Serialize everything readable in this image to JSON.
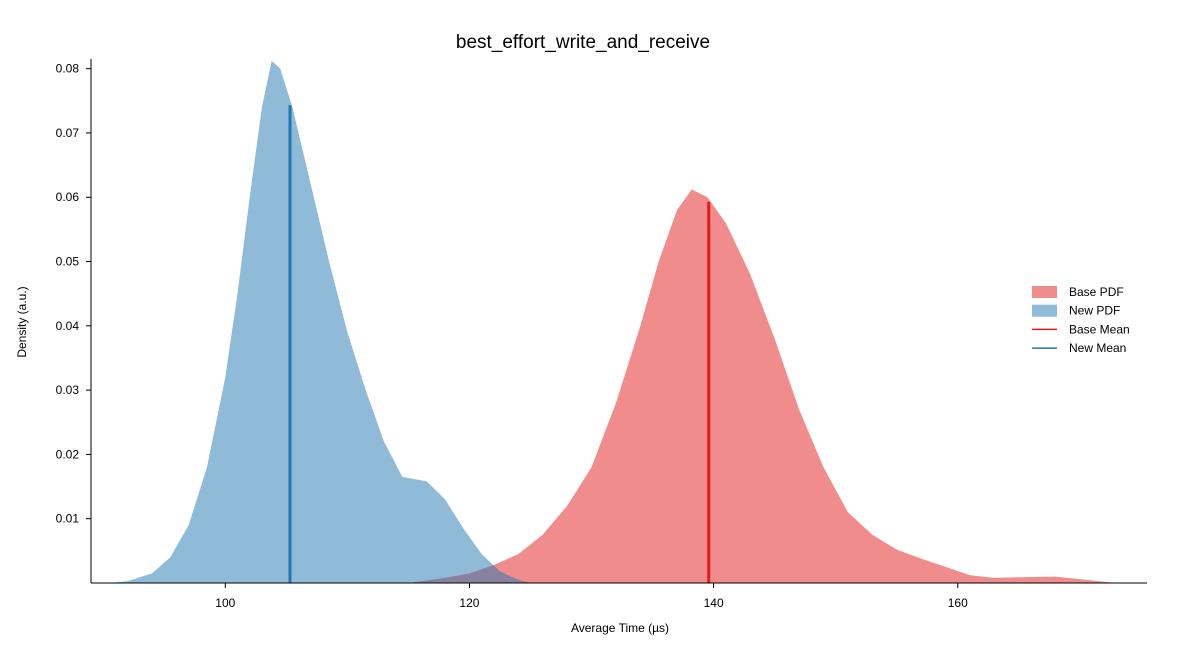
{
  "chart_data": {
    "type": "area",
    "title": "best_effort_write_and_receive",
    "xlabel": "Average Time (µs)",
    "ylabel": "Density (a.u.)",
    "xlim": [
      89,
      175.5
    ],
    "ylim": [
      0,
      0.0815
    ],
    "x_ticks": [
      100,
      120,
      140,
      160
    ],
    "y_ticks": [
      0.01,
      0.02,
      0.03,
      0.04,
      0.05,
      0.06,
      0.07,
      0.08
    ],
    "grid": false,
    "legend_position": "right",
    "colors": {
      "base": "#e31a1c",
      "new": "#1f78b4",
      "base_fill": "#f08c8c",
      "new_fill": "#8fbbdb"
    },
    "series": [
      {
        "name": "Base PDF",
        "kind": "pdf",
        "color": "#e31a1c",
        "points": [
          [
            115,
            0.0
          ],
          [
            118,
            0.0008
          ],
          [
            120,
            0.0015
          ],
          [
            122,
            0.0028
          ],
          [
            124,
            0.0045
          ],
          [
            126,
            0.0075
          ],
          [
            128,
            0.012
          ],
          [
            130,
            0.018
          ],
          [
            132,
            0.028
          ],
          [
            134,
            0.04
          ],
          [
            135.5,
            0.05
          ],
          [
            137,
            0.058
          ],
          [
            138.2,
            0.0612
          ],
          [
            139.5,
            0.06
          ],
          [
            141,
            0.056
          ],
          [
            143,
            0.048
          ],
          [
            145,
            0.038
          ],
          [
            147,
            0.027
          ],
          [
            149,
            0.018
          ],
          [
            151,
            0.011
          ],
          [
            153,
            0.0075
          ],
          [
            155,
            0.0052
          ],
          [
            157,
            0.0038
          ],
          [
            159,
            0.0025
          ],
          [
            161,
            0.0012
          ],
          [
            163,
            0.0008
          ],
          [
            165,
            0.0009
          ],
          [
            168,
            0.001
          ],
          [
            170,
            0.0006
          ],
          [
            172,
            0.0002
          ],
          [
            173,
            0.0
          ]
        ]
      },
      {
        "name": "New PDF",
        "kind": "pdf",
        "color": "#1f78b4",
        "points": [
          [
            90.5,
            0.0
          ],
          [
            92,
            0.0003
          ],
          [
            94,
            0.0015
          ],
          [
            95.5,
            0.004
          ],
          [
            97,
            0.009
          ],
          [
            98.5,
            0.018
          ],
          [
            100,
            0.032
          ],
          [
            101,
            0.045
          ],
          [
            102,
            0.06
          ],
          [
            103,
            0.074
          ],
          [
            103.8,
            0.0812
          ],
          [
            104.5,
            0.08
          ],
          [
            105.5,
            0.074
          ],
          [
            107,
            0.062
          ],
          [
            108.5,
            0.05
          ],
          [
            110,
            0.039
          ],
          [
            111.5,
            0.03
          ],
          [
            113,
            0.022
          ],
          [
            114.5,
            0.0165
          ],
          [
            116.5,
            0.0158
          ],
          [
            118,
            0.013
          ],
          [
            119.5,
            0.0085
          ],
          [
            121,
            0.0045
          ],
          [
            122.5,
            0.0018
          ],
          [
            124,
            0.0005
          ],
          [
            125,
            0.0
          ]
        ]
      },
      {
        "name": "Base Mean",
        "kind": "mean",
        "color": "#e31a1c",
        "x": 139.6,
        "y": 0.0593
      },
      {
        "name": "New Mean",
        "kind": "mean",
        "color": "#1f78b4",
        "x": 105.3,
        "y": 0.0743
      }
    ]
  }
}
